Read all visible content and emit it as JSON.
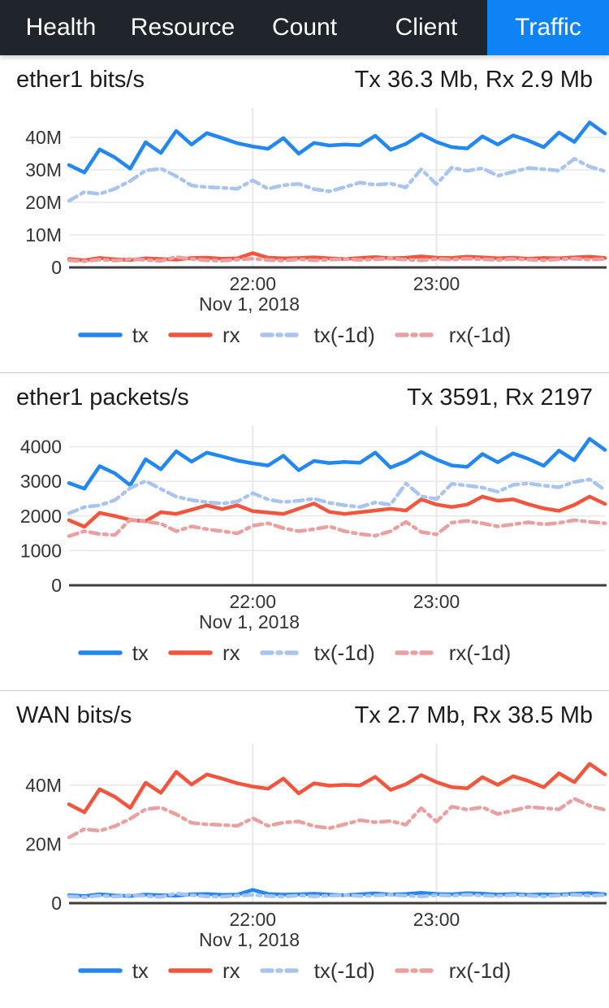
{
  "nav": {
    "tabs": [
      {
        "label": "Health",
        "active": false
      },
      {
        "label": "Resource",
        "active": false
      },
      {
        "label": "Count",
        "active": false
      },
      {
        "label": "Client",
        "active": false
      },
      {
        "label": "Traffic",
        "active": true
      }
    ]
  },
  "colors": {
    "nav_bg": "#20242b",
    "nav_active_bg": "#0e84f4",
    "nav_text": "#ffffff",
    "tx": "#2287ef",
    "rx": "#f2553d",
    "tx_prev": "#a9c5ef",
    "rx_prev": "#e9a0a0",
    "grid": "#e8e8e8",
    "axis": "#3d3d3d",
    "tick_text": "#333333"
  },
  "chart_data": [
    {
      "type": "line",
      "title": "ether1 bits/s",
      "summary": "Tx 36.3 Mb, Rx 2.9 Mb",
      "x_date": "Nov 1, 2018",
      "y_unit": "bits/s (M = 1e6)",
      "ylim": [
        0,
        49
      ],
      "yticks": [
        {
          "value": 0,
          "label": "0"
        },
        {
          "value": 10,
          "label": "10M"
        },
        {
          "value": 20,
          "label": "20M"
        },
        {
          "value": 30,
          "label": "30M"
        },
        {
          "value": 40,
          "label": "40M"
        }
      ],
      "xticks": [
        {
          "index": 12,
          "label": "22:00"
        },
        {
          "index": 24,
          "label": "23:00"
        }
      ],
      "series": [
        {
          "name": "tx",
          "color": "#2287ef",
          "dash": false,
          "values": [
            31.5,
            29.2,
            36.3,
            33.8,
            30.4,
            38.5,
            35.2,
            42.0,
            37.8,
            41.3,
            39.8,
            38.2,
            37.2,
            36.5,
            39.8,
            35.0,
            38.3,
            37.5,
            37.8,
            37.6,
            40.5,
            36.2,
            38.0,
            41.0,
            38.6,
            37.0,
            36.6,
            40.3,
            37.8,
            40.6,
            39.0,
            37.0,
            41.5,
            38.6,
            44.6,
            41.2
          ]
        },
        {
          "name": "rx",
          "color": "#f2553d",
          "dash": false,
          "values": [
            2.6,
            2.2,
            2.9,
            2.5,
            2.3,
            2.8,
            2.6,
            2.4,
            2.9,
            3.0,
            2.7,
            2.8,
            4.4,
            3.0,
            2.8,
            2.9,
            3.1,
            2.8,
            2.6,
            2.9,
            3.2,
            2.8,
            3.0,
            3.4,
            3.0,
            2.9,
            3.3,
            3.1,
            2.8,
            3.0,
            2.7,
            2.9,
            2.8,
            3.1,
            3.3,
            2.9
          ]
        },
        {
          "name": "tx(-1d)",
          "color": "#a9c5ef",
          "dash": true,
          "values": [
            20.5,
            23.2,
            22.6,
            24.2,
            26.6,
            29.8,
            30.4,
            28.1,
            25.2,
            24.7,
            24.5,
            24.2,
            26.8,
            24.2,
            25.3,
            25.7,
            24.1,
            23.4,
            24.7,
            26.1,
            25.4,
            25.8,
            24.6,
            30.2,
            25.6,
            30.7,
            29.7,
            30.5,
            28.2,
            29.4,
            30.6,
            30.2,
            29.8,
            33.4,
            31.0,
            29.6
          ]
        },
        {
          "name": "rx(-1d)",
          "color": "#e9a0a0",
          "dash": true,
          "values": [
            2.2,
            1.9,
            2.4,
            2.1,
            2.6,
            2.3,
            2.0,
            3.2,
            2.6,
            2.2,
            2.1,
            2.4,
            2.7,
            2.3,
            2.1,
            2.5,
            2.2,
            2.4,
            2.6,
            2.3,
            2.5,
            2.7,
            2.4,
            2.2,
            2.6,
            2.4,
            2.7,
            2.5,
            2.3,
            2.6,
            2.4,
            2.2,
            2.5,
            2.7,
            2.4,
            2.6
          ]
        }
      ]
    },
    {
      "type": "line",
      "title": "ether1 packets/s",
      "summary": "Tx 3591, Rx 2197",
      "x_date": "Nov 1, 2018",
      "y_unit": "packets/s",
      "ylim": [
        0,
        4600
      ],
      "yticks": [
        {
          "value": 0,
          "label": "0"
        },
        {
          "value": 1000,
          "label": "1000"
        },
        {
          "value": 2000,
          "label": "2000"
        },
        {
          "value": 3000,
          "label": "3000"
        },
        {
          "value": 4000,
          "label": "4000"
        }
      ],
      "xticks": [
        {
          "index": 12,
          "label": "22:00"
        },
        {
          "index": 24,
          "label": "23:00"
        }
      ],
      "series": [
        {
          "name": "tx",
          "color": "#2287ef",
          "dash": false,
          "values": [
            2950,
            2790,
            3440,
            3230,
            2890,
            3640,
            3350,
            3870,
            3570,
            3830,
            3720,
            3600,
            3520,
            3460,
            3740,
            3320,
            3590,
            3530,
            3560,
            3540,
            3830,
            3400,
            3580,
            3850,
            3630,
            3460,
            3420,
            3790,
            3550,
            3810,
            3650,
            3450,
            3890,
            3610,
            4230,
            3910
          ]
        },
        {
          "name": "rx",
          "color": "#f2553d",
          "dash": false,
          "values": [
            1880,
            1690,
            2090,
            2000,
            1890,
            1850,
            2110,
            2060,
            2180,
            2310,
            2200,
            2310,
            2140,
            2100,
            2060,
            2210,
            2360,
            2120,
            2060,
            2110,
            2160,
            2210,
            2160,
            2480,
            2330,
            2260,
            2330,
            2560,
            2440,
            2480,
            2340,
            2220,
            2150,
            2320,
            2560,
            2350
          ]
        },
        {
          "name": "tx(-1d)",
          "color": "#a9c5ef",
          "dash": true,
          "values": [
            2080,
            2260,
            2310,
            2460,
            2810,
            3010,
            2780,
            2560,
            2460,
            2400,
            2360,
            2420,
            2660,
            2480,
            2400,
            2440,
            2500,
            2380,
            2310,
            2260,
            2390,
            2330,
            2940,
            2570,
            2490,
            2930,
            2880,
            2820,
            2700,
            2900,
            2940,
            2880,
            2830,
            2980,
            3060,
            2750
          ]
        },
        {
          "name": "rx(-1d)",
          "color": "#e9a0a0",
          "dash": true,
          "values": [
            1420,
            1560,
            1480,
            1450,
            1900,
            1840,
            1780,
            1560,
            1700,
            1620,
            1560,
            1500,
            1720,
            1790,
            1650,
            1560,
            1620,
            1700,
            1560,
            1480,
            1430,
            1560,
            1830,
            1540,
            1470,
            1810,
            1860,
            1790,
            1700,
            1760,
            1820,
            1760,
            1800,
            1880,
            1830,
            1790
          ]
        }
      ]
    },
    {
      "type": "line",
      "title": "WAN bits/s",
      "summary": "Tx 2.7 Mb, Rx 38.5 Mb",
      "x_date": "Nov 1, 2018",
      "y_unit": "bits/s (M = 1e6)",
      "ylim": [
        0,
        54
      ],
      "yticks": [
        {
          "value": 0,
          "label": "0"
        },
        {
          "value": 20,
          "label": "20M"
        },
        {
          "value": 40,
          "label": "40M"
        }
      ],
      "xticks": [
        {
          "index": 12,
          "label": "22:00"
        },
        {
          "index": 24,
          "label": "23:00"
        }
      ],
      "series": [
        {
          "name": "tx",
          "color": "#2287ef",
          "dash": false,
          "values": [
            2.7,
            2.4,
            3.0,
            2.6,
            2.4,
            2.9,
            2.7,
            2.5,
            3.0,
            3.1,
            2.8,
            2.9,
            4.5,
            3.1,
            2.9,
            3.0,
            3.2,
            2.9,
            2.7,
            3.0,
            3.3,
            2.9,
            3.1,
            3.5,
            3.1,
            3.0,
            3.4,
            3.2,
            2.9,
            3.1,
            2.8,
            3.0,
            2.9,
            3.2,
            3.4,
            3.0
          ]
        },
        {
          "name": "rx",
          "color": "#f2553d",
          "dash": false,
          "values": [
            33.5,
            30.8,
            38.6,
            36.0,
            32.3,
            40.8,
            37.4,
            44.5,
            40.2,
            43.6,
            42.2,
            40.6,
            39.5,
            38.8,
            42.2,
            37.2,
            40.6,
            39.8,
            40.1,
            39.9,
            42.8,
            38.4,
            40.3,
            43.4,
            41.0,
            39.3,
            38.9,
            42.7,
            40.1,
            43.0,
            41.4,
            39.3,
            44.0,
            41.0,
            47.2,
            43.6
          ]
        },
        {
          "name": "tx(-1d)",
          "color": "#a9c5ef",
          "dash": true,
          "values": [
            2.3,
            2.0,
            2.5,
            2.2,
            2.7,
            2.4,
            2.1,
            3.3,
            2.7,
            2.3,
            2.2,
            2.5,
            2.8,
            2.4,
            2.2,
            2.6,
            2.3,
            2.5,
            2.7,
            2.4,
            2.6,
            2.8,
            2.5,
            2.3,
            2.7,
            2.5,
            2.8,
            2.6,
            2.4,
            2.7,
            2.5,
            2.3,
            2.6,
            2.8,
            2.5,
            2.7
          ]
        },
        {
          "name": "rx(-1d)",
          "color": "#e9a0a0",
          "dash": true,
          "values": [
            22.3,
            25.1,
            24.5,
            26.1,
            28.6,
            31.8,
            32.4,
            30.1,
            27.2,
            26.7,
            26.5,
            26.2,
            28.8,
            26.2,
            27.3,
            27.7,
            26.1,
            25.4,
            26.7,
            28.1,
            27.4,
            27.8,
            26.6,
            32.2,
            27.6,
            32.7,
            31.7,
            32.5,
            30.2,
            31.4,
            32.6,
            32.2,
            31.8,
            35.4,
            33.0,
            31.6
          ]
        }
      ]
    }
  ]
}
